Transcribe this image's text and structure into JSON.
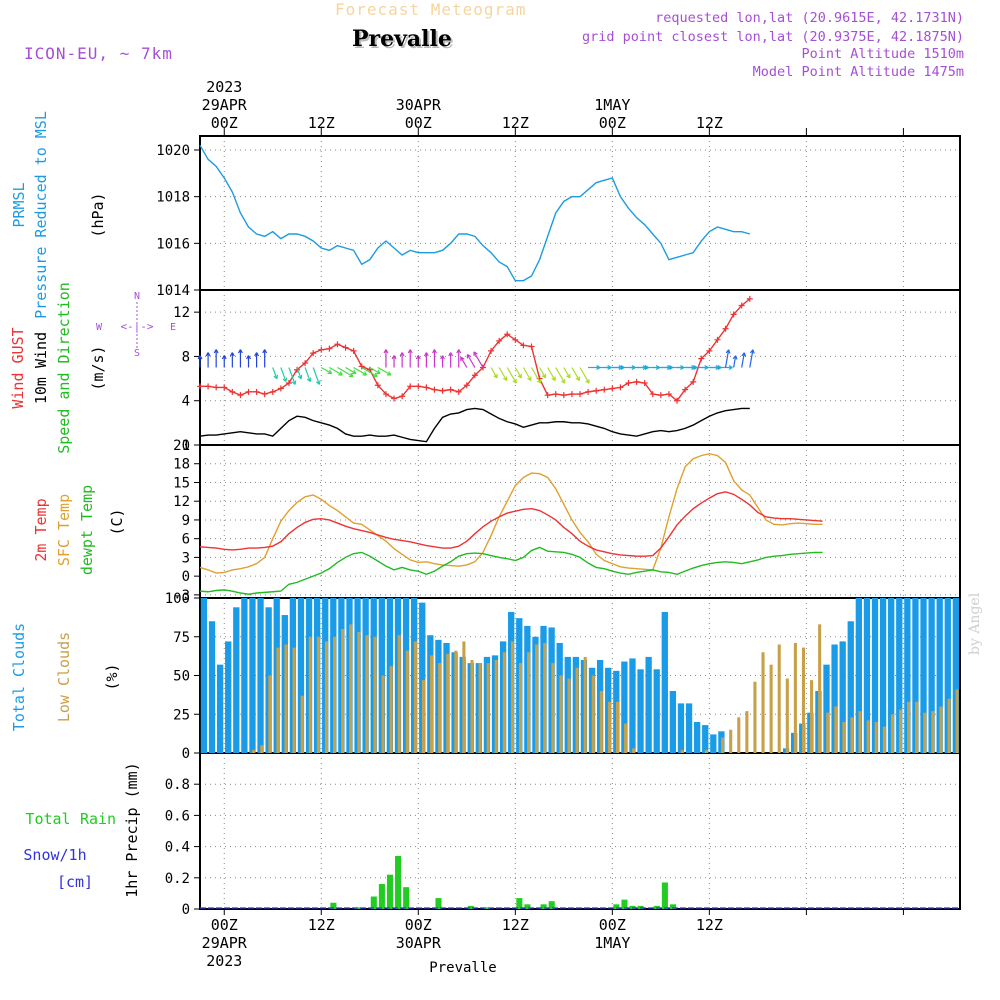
{
  "header": {
    "tool_title": "Forecast Meteogram",
    "place": "Prevalle",
    "model": "ICON-EU, ~ 7km",
    "requested": "requested lon,lat (20.9615E, 42.1731N)",
    "grid_point": "grid point closest lon,lat (20.9375E, 42.1875N)",
    "point_altitude": "Point Altitude 1510m",
    "model_altitude": "Model Point Altitude 1475m",
    "watermark": "by Angel"
  },
  "colors": {
    "pressure": "#1e9be0",
    "gust": "#ee3333",
    "wind": "#000000",
    "temp": "#ee3333",
    "sfc": "#e0a030",
    "dewpt": "#22bb22",
    "total_clouds": "#1a9be8",
    "low_clouds": "#c8a048",
    "rain": "#22cc22",
    "snow": "#3333dd",
    "label_purple": "#a64fd6"
  },
  "time_axis": {
    "top_labels": [
      {
        "tick": "00Z",
        "date": "29APR",
        "year": "2023"
      },
      {
        "tick": "12Z",
        "date": "",
        "year": ""
      },
      {
        "tick": "00Z",
        "date": "30APR",
        "year": ""
      },
      {
        "tick": "12Z",
        "date": "",
        "year": ""
      },
      {
        "tick": "00Z",
        "date": "1MAY",
        "year": ""
      },
      {
        "tick": "12Z",
        "date": "",
        "year": ""
      }
    ],
    "bottom_labels": [
      {
        "tick": "00Z",
        "date": "29APR",
        "year": "2023"
      },
      {
        "tick": "12Z",
        "date": "",
        "year": ""
      },
      {
        "tick": "00Z",
        "date": "30APR",
        "year": ""
      },
      {
        "tick": "12Z",
        "date": "",
        "year": ""
      },
      {
        "tick": "00Z",
        "date": "1MAY",
        "year": ""
      },
      {
        "tick": "12Z",
        "date": "",
        "year": ""
      }
    ],
    "footer": "Prevalle"
  },
  "panel_labels": {
    "pressure": {
      "line1": "PRMSL",
      "line2": "Pressure Reduced to MSL",
      "unit": "(hPa)"
    },
    "wind": {
      "line1": "Wind GUST",
      "line2": "10m Wind",
      "line3": "Speed and Direction",
      "unit": "(m/s)",
      "compass_n": "N",
      "compass_s": "S",
      "compass_w": "W",
      "compass_e": "E",
      "compass_arrow": "<-|->"
    },
    "temp": {
      "line1": "2m Temp",
      "line2": "SFC Temp",
      "line3": "dewpt Temp",
      "unit": "(C)"
    },
    "clouds": {
      "line1": "Total Clouds",
      "line2": "Low Clouds",
      "unit": "(%)"
    },
    "precip": {
      "line1": "Total",
      "line1b": "Rain",
      "line2": "Snow/1h",
      "line3": "[cm]",
      "unit": "1hr Precip (mm)"
    }
  },
  "chart_data": [
    {
      "type": "line",
      "title": "PRMSL Pressure Reduced to MSL",
      "ylabel": "(hPa)",
      "ylim": [
        1014,
        1020.6
      ],
      "yticks": [
        1014,
        1016,
        1018,
        1020
      ],
      "x_hours_start": -3,
      "x_hours_step": 1,
      "series": [
        {
          "name": "PRMSL",
          "values": [
            1020.2,
            1019.6,
            1019.3,
            1018.8,
            1018.2,
            1017.3,
            1016.7,
            1016.4,
            1016.3,
            1016.5,
            1016.2,
            1016.4,
            1016.4,
            1016.3,
            1016.1,
            1015.8,
            1015.7,
            1015.9,
            1015.8,
            1015.7,
            1015.1,
            1015.3,
            1015.8,
            1016.1,
            1015.8,
            1015.5,
            1015.7,
            1015.6,
            1015.6,
            1015.6,
            1015.7,
            1016.0,
            1016.4,
            1016.4,
            1016.3,
            1015.9,
            1015.6,
            1015.2,
            1015.0,
            1014.4,
            1014.4,
            1014.6,
            1015.3,
            1016.3,
            1017.3,
            1017.8,
            1018.0,
            1018.0,
            1018.3,
            1018.6,
            1018.7,
            1018.8,
            1018.0,
            1017.5,
            1017.1,
            1016.8,
            1016.4,
            1016.0,
            1015.3,
            1015.4,
            1015.5,
            1015.6,
            1016.1,
            1016.5,
            1016.7,
            1016.6,
            1016.5,
            1016.5,
            1016.4
          ]
        }
      ]
    },
    {
      "type": "line",
      "title": "Wind GUST / 10m Wind Speed and Direction",
      "ylabel": "(m/s)",
      "ylim": [
        0,
        14
      ],
      "yticks": [
        0,
        4,
        8,
        12
      ],
      "x_hours_start": -3,
      "x_hours_step": 1,
      "series": [
        {
          "name": "Wind GUST",
          "values": [
            5.3,
            5.3,
            5.2,
            5.2,
            4.8,
            4.5,
            4.8,
            4.8,
            4.6,
            4.8,
            5.1,
            5.6,
            6.8,
            7.4,
            8.3,
            8.6,
            8.7,
            9.1,
            8.8,
            8.5,
            7.1,
            6.8,
            5.4,
            4.6,
            4.2,
            4.4,
            5.3,
            5.3,
            5.2,
            5.0,
            4.9,
            5.0,
            4.8,
            5.4,
            6.3,
            7.0,
            8.5,
            9.4,
            10.0,
            9.5,
            9.0,
            8.9,
            6.0,
            4.5,
            4.6,
            4.5,
            4.6,
            4.6,
            4.8,
            4.9,
            5.0,
            5.1,
            5.2,
            5.6,
            5.7,
            5.6,
            4.6,
            4.5,
            4.6,
            4.0,
            5.0,
            5.7,
            7.8,
            8.5,
            9.5,
            10.5,
            11.8,
            12.6,
            13.2
          ]
        },
        {
          "name": "10m Wind",
          "values": [
            0.8,
            0.9,
            0.9,
            1.0,
            1.1,
            1.2,
            1.1,
            1.0,
            1.0,
            0.8,
            1.5,
            2.2,
            2.6,
            2.5,
            2.2,
            2.0,
            1.8,
            1.5,
            1.0,
            0.8,
            0.8,
            0.9,
            0.8,
            0.8,
            0.9,
            0.7,
            0.5,
            0.4,
            0.3,
            1.5,
            2.5,
            2.8,
            2.9,
            3.2,
            3.3,
            3.2,
            2.8,
            2.4,
            2.1,
            1.9,
            1.6,
            1.8,
            2.0,
            2.0,
            2.1,
            2.1,
            2.0,
            2.0,
            1.9,
            1.7,
            1.5,
            1.2,
            1.0,
            0.9,
            0.8,
            1.0,
            1.2,
            1.3,
            1.2,
            1.3,
            1.5,
            1.8,
            2.2,
            2.6,
            2.9,
            3.1,
            3.2,
            3.3,
            3.3
          ]
        }
      ]
    },
    {
      "type": "line",
      "title": "2m Temp / SFC Temp / dewpt Temp",
      "ylabel": "(C)",
      "ylim": [
        -3.5,
        21
      ],
      "yticks": [
        -3,
        0,
        3,
        6,
        9,
        12,
        15,
        18,
        21
      ],
      "x_hours_start": -3,
      "x_hours_step": 1,
      "series": [
        {
          "name": "2m Temp",
          "values": [
            4.7,
            4.6,
            4.5,
            4.3,
            4.2,
            4.3,
            4.5,
            4.5,
            4.6,
            4.8,
            5.5,
            6.8,
            7.8,
            8.6,
            9.1,
            9.2,
            9.0,
            8.5,
            8.0,
            7.6,
            7.3,
            7.0,
            6.6,
            6.2,
            5.9,
            5.7,
            5.5,
            5.2,
            4.9,
            4.7,
            4.5,
            4.5,
            4.8,
            5.6,
            6.8,
            7.9,
            8.8,
            9.5,
            10.1,
            10.4,
            10.7,
            10.8,
            10.5,
            9.8,
            9.0,
            7.8,
            6.8,
            5.6,
            4.8,
            4.2,
            3.9,
            3.6,
            3.4,
            3.3,
            3.2,
            3.2,
            3.3,
            4.5,
            6.3,
            8.2,
            9.6,
            10.8,
            11.7,
            12.5,
            13.2,
            13.5,
            13.1,
            12.3,
            11.4,
            10.2,
            9.5,
            9.3,
            9.2,
            9.2,
            9.1,
            9.0,
            8.9,
            8.8
          ]
        },
        {
          "name": "SFC Temp",
          "values": [
            1.4,
            1.0,
            0.5,
            0.6,
            1.0,
            1.2,
            1.5,
            2.0,
            3.0,
            6.0,
            8.8,
            10.5,
            11.8,
            12.7,
            13.0,
            12.3,
            11.3,
            10.5,
            9.5,
            8.5,
            8.3,
            7.4,
            6.5,
            5.6,
            4.4,
            3.5,
            2.6,
            2.2,
            2.3,
            2.0,
            1.8,
            1.7,
            1.6,
            1.8,
            2.3,
            3.8,
            6.5,
            9.5,
            12.0,
            14.5,
            15.8,
            16.5,
            16.4,
            15.8,
            14.0,
            11.5,
            9.0,
            7.0,
            5.5,
            3.5,
            2.5,
            2.0,
            1.5,
            1.3,
            1.2,
            1.1,
            1.0,
            4.5,
            9.5,
            14.0,
            17.5,
            18.8,
            19.3,
            19.6,
            19.3,
            18.2,
            15.3,
            13.8,
            13.0,
            11.0,
            9.0,
            8.3,
            8.2,
            8.4,
            8.5,
            8.4,
            8.3,
            8.3
          ]
        },
        {
          "name": "dewpt Temp",
          "values": [
            -2.4,
            -2.5,
            -2.3,
            -2.2,
            -2.4,
            -2.7,
            -2.9,
            -2.7,
            -2.6,
            -2.5,
            -2.4,
            -1.3,
            -1.0,
            -0.5,
            0.0,
            0.5,
            1.2,
            2.2,
            3.0,
            3.6,
            3.8,
            3.2,
            2.4,
            1.6,
            1.0,
            1.4,
            1.0,
            0.8,
            0.3,
            0.8,
            1.6,
            2.3,
            3.2,
            3.6,
            3.7,
            3.6,
            3.3,
            3.0,
            2.8,
            2.5,
            3.0,
            4.1,
            4.6,
            4.0,
            3.9,
            3.8,
            3.5,
            3.0,
            2.1,
            1.4,
            1.2,
            0.8,
            0.5,
            0.3,
            0.6,
            0.8,
            1.0,
            0.7,
            0.6,
            0.3,
            0.8,
            1.3,
            1.7,
            2.0,
            2.2,
            2.3,
            2.2,
            2.0,
            2.3,
            2.6,
            3.0,
            3.2,
            3.3,
            3.5,
            3.6,
            3.7,
            3.8,
            3.8
          ]
        }
      ]
    },
    {
      "type": "bar",
      "title": "Total Clouds / Low Clouds",
      "ylabel": "(%)",
      "ylim": [
        0,
        100
      ],
      "yticks": [
        0,
        25,
        50,
        75,
        100
      ],
      "x_hours_start": -3,
      "x_hours_step": 1,
      "series": [
        {
          "name": "Total Clouds",
          "values": [
            100,
            85,
            57,
            72,
            94,
            100,
            100,
            100,
            94,
            100,
            89,
            100,
            100,
            100,
            100,
            100,
            100,
            100,
            100,
            100,
            100,
            100,
            100,
            100,
            100,
            100,
            100,
            97,
            76,
            73,
            71,
            65,
            62,
            58,
            58,
            62,
            63,
            72,
            91,
            87,
            82,
            75,
            82,
            81,
            71,
            62,
            62,
            60,
            55,
            60,
            55,
            53,
            59,
            61,
            54,
            62,
            54,
            91,
            40,
            32,
            32,
            20,
            18,
            12,
            14,
            0,
            0,
            0,
            0,
            0,
            0,
            0,
            3,
            13,
            19,
            26,
            40,
            57,
            70,
            72,
            85,
            100,
            100,
            100,
            100,
            100,
            100,
            100,
            100,
            100,
            100,
            100,
            100,
            100
          ]
        },
        {
          "name": "Low Clouds",
          "values": [
            0,
            0,
            0,
            0,
            0,
            0,
            2,
            5,
            50,
            68,
            70,
            68,
            37,
            75,
            75,
            72,
            75,
            80,
            83,
            78,
            76,
            75,
            50,
            56,
            76,
            66,
            72,
            47,
            63,
            58,
            64,
            66,
            72,
            60,
            58,
            58,
            60,
            65,
            72,
            58,
            65,
            70,
            71,
            58,
            50,
            48,
            55,
            62,
            50,
            40,
            33,
            33,
            19,
            3,
            0,
            0,
            0,
            0,
            0,
            2,
            0,
            0,
            2,
            0,
            10,
            15,
            23,
            27,
            46,
            65,
            57,
            70,
            48,
            71,
            68,
            47,
            83,
            26,
            30,
            20,
            23,
            27,
            21,
            20,
            17,
            25,
            28,
            33,
            33,
            26,
            27,
            30,
            35,
            41
          ]
        }
      ]
    },
    {
      "type": "bar",
      "title": "1hr Precip",
      "ylabel": "1hr Precip (mm)",
      "ylim": [
        0,
        1.0
      ],
      "yticks": [
        0,
        0.2,
        0.4,
        0.6,
        0.8
      ],
      "x_hours_start": -3,
      "x_hours_step": 1,
      "series": [
        {
          "name": "Total Rain",
          "values": [
            0,
            0,
            0,
            0,
            0,
            0,
            0,
            0,
            0,
            0,
            0,
            0,
            0,
            0,
            0,
            0,
            0.04,
            0,
            0,
            0.01,
            0,
            0.08,
            0.16,
            0.22,
            0.34,
            0.14,
            0,
            0,
            0,
            0.07,
            0,
            0,
            0,
            0.02,
            0,
            0.01,
            0,
            0,
            0,
            0.07,
            0.03,
            0,
            0.03,
            0.05,
            0,
            0,
            0,
            0,
            0,
            0,
            0,
            0.03,
            0.06,
            0.02,
            0.02,
            0,
            0.02,
            0.17,
            0.03,
            0,
            0,
            0,
            0,
            0,
            0,
            0,
            0,
            0,
            0,
            0,
            0,
            0,
            0,
            0,
            0,
            0,
            0,
            0,
            0,
            0,
            0,
            0,
            0,
            0,
            0,
            0,
            0,
            0,
            0,
            0,
            0,
            0,
            0,
            0
          ]
        },
        {
          "name": "Snow/1h",
          "values": []
        }
      ]
    }
  ]
}
